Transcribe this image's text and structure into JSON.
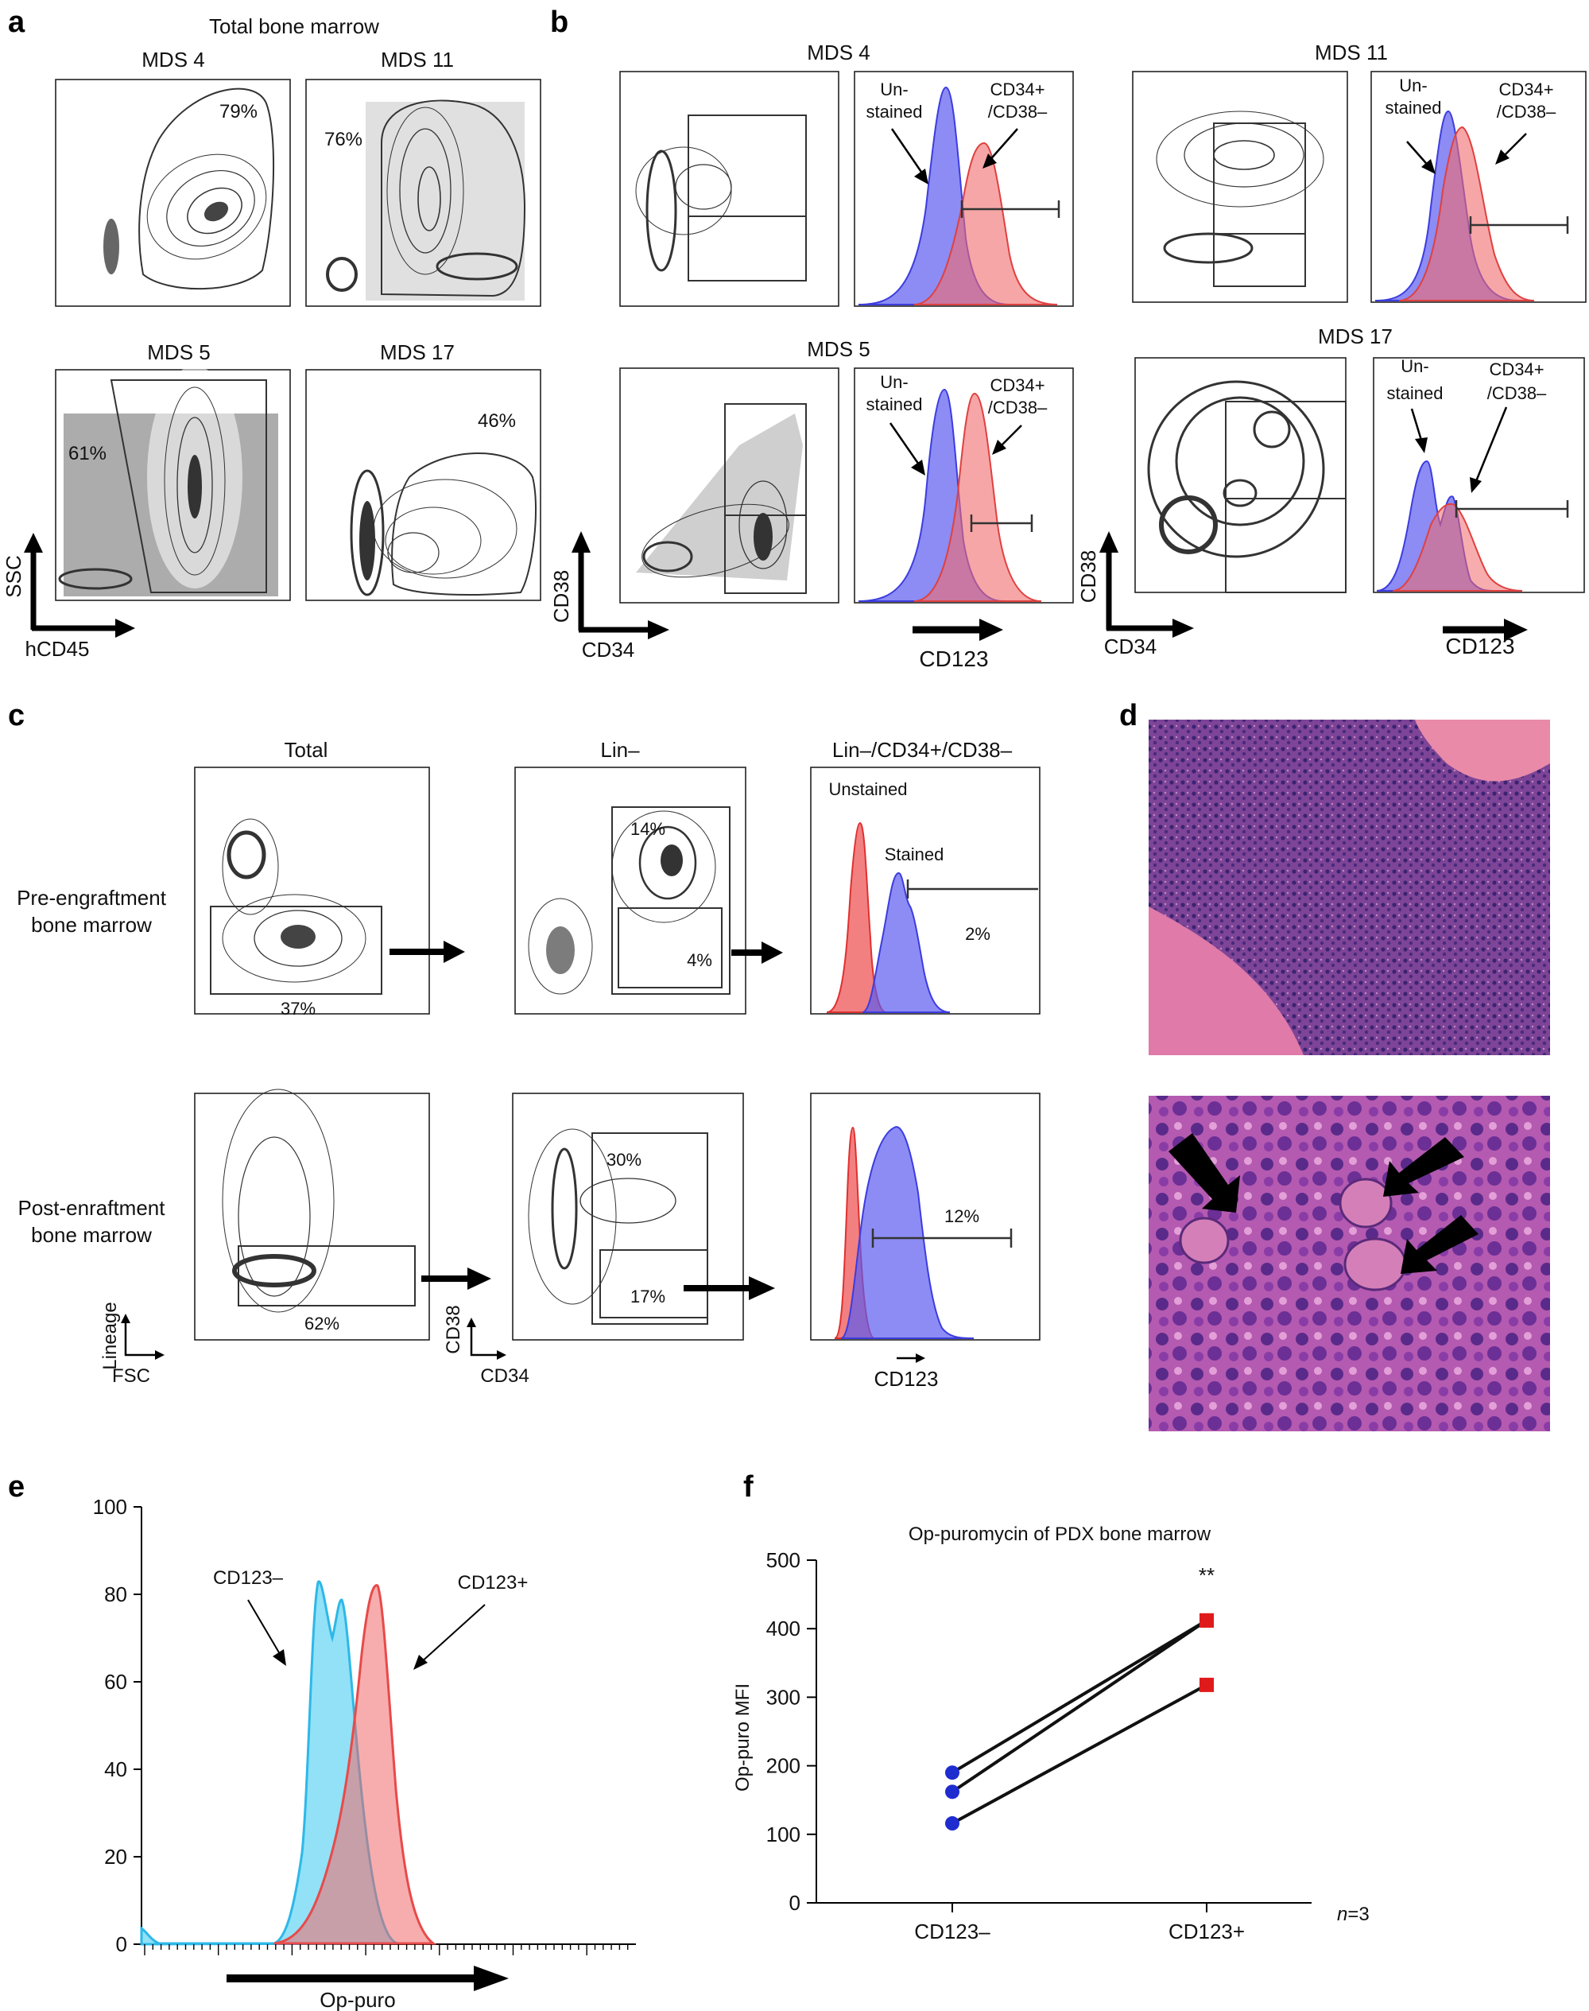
{
  "panels": {
    "a": "a",
    "b": "b",
    "c": "c",
    "d": "d",
    "e": "e",
    "f": "f"
  },
  "panel_a": {
    "title": "Total bone marrow",
    "plots": [
      {
        "name": "MDS 4",
        "gate": "79%"
      },
      {
        "name": "MDS 11",
        "gate": "76%"
      },
      {
        "name": "MDS 5",
        "gate": "61%"
      },
      {
        "name": "MDS 17",
        "gate": "46%"
      }
    ],
    "xaxis": "hCD45",
    "yaxis": "SSC"
  },
  "panel_b": {
    "plots": [
      {
        "name": "MDS 4"
      },
      {
        "name": "MDS 11"
      },
      {
        "name": "MDS 5"
      },
      {
        "name": "MDS 17"
      }
    ],
    "unstained_1": "Un-",
    "unstained_2": "stained",
    "cd_1": "CD34+",
    "cd_2": "/CD38–",
    "xaxis_contour": "CD34",
    "yaxis_contour": "CD38",
    "xaxis_hist": "CD123",
    "colors": {
      "unstained": "#5b5bf0",
      "stained": "#f06a6a"
    }
  },
  "panel_c": {
    "col_titles": [
      "Total",
      "Lin–",
      "Lin–/CD34+/CD38–"
    ],
    "row1_label_1": "Pre-engraftment",
    "row1_label_2": "bone marrow",
    "row2_label_1": "Post-enraftment",
    "row2_label_2": "bone marrow",
    "row1": {
      "total_gate": "37%",
      "lin_outer": "14%",
      "lin_inner": "4%",
      "hist_gate": "2%"
    },
    "row2": {
      "total_gate": "62%",
      "lin_outer": "30%",
      "lin_inner": "17%",
      "hist_gate": "12%"
    },
    "hist_unstained": "Unstained",
    "hist_stained": "Stained",
    "axis_lineage": "Lineage",
    "axis_fsc": "FSC",
    "axis_cd38": "CD38",
    "axis_cd34": "CD34",
    "axis_cd123": "CD123"
  },
  "panel_e": {
    "yticks": [
      "0",
      "20",
      "40",
      "60",
      "80",
      "100"
    ],
    "label_neg": "CD123–",
    "label_pos": "CD123+",
    "xaxis": "Op-puro",
    "colors": {
      "neg": "#38c8f0",
      "pos": "#f06a6a"
    }
  },
  "chart_data": {
    "type": "scatter",
    "title": "Op-puromycin of PDX bone marrow",
    "ylabel": "Op-puro MFI",
    "xlabel": "",
    "categories": [
      "CD123–",
      "CD123+"
    ],
    "ylim": [
      0,
      500
    ],
    "yticks": [
      "0",
      "100",
      "200",
      "300",
      "400",
      "500"
    ],
    "pairs": [
      [
        190,
        412
      ],
      [
        162,
        412
      ],
      [
        116,
        318
      ]
    ],
    "significance": "**",
    "n_label_1": "n",
    "n_label_2": "=3",
    "colors": {
      "neg": "#1f2ccf",
      "pos": "#e01a1a"
    }
  }
}
